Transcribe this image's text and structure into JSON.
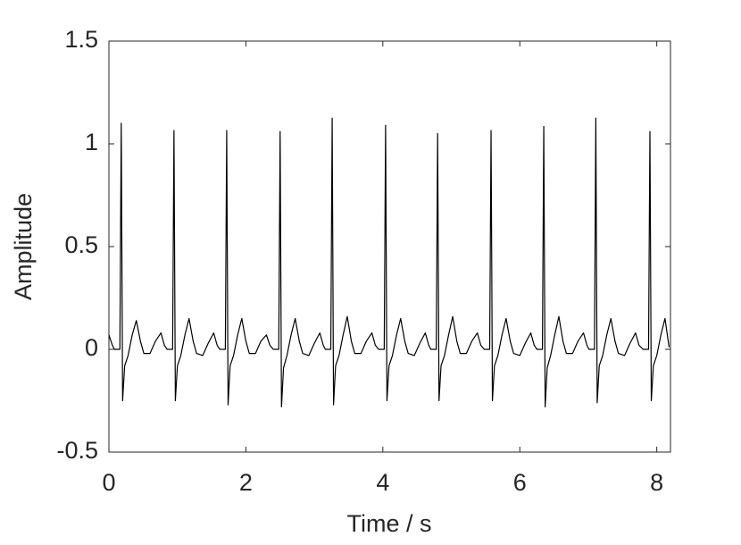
{
  "chart_data": {
    "type": "line",
    "xlabel": "Time / s",
    "ylabel": "Amplitude",
    "xlim": [
      0,
      8.2
    ],
    "ylim": [
      -0.5,
      1.5
    ],
    "xticks": [
      0,
      2,
      4,
      6,
      8
    ],
    "yticks": [
      -0.5,
      0,
      0.5,
      1,
      1.5
    ],
    "grid": false,
    "series": [
      {
        "color": "#000000",
        "x": [
          0,
          0.05,
          0.08,
          0.16,
          0.18,
          0.2,
          0.23,
          0.28,
          0.34,
          0.4,
          0.46,
          0.51,
          0.6,
          0.68,
          0.76,
          0.81,
          0.85,
          0.93,
          0.95,
          0.97,
          1.0,
          1.05,
          1.11,
          1.17,
          1.23,
          1.28,
          1.37,
          1.45,
          1.53,
          1.58,
          1.62,
          1.7,
          1.72,
          1.74,
          1.77,
          1.82,
          1.88,
          1.94,
          2.0,
          2.05,
          2.14,
          2.22,
          2.3,
          2.35,
          2.4,
          2.48,
          2.5,
          2.52,
          2.55,
          2.6,
          2.66,
          2.72,
          2.78,
          2.83,
          2.92,
          3.0,
          3.08,
          3.13,
          3.16,
          3.24,
          3.26,
          3.28,
          3.31,
          3.36,
          3.42,
          3.48,
          3.54,
          3.59,
          3.68,
          3.76,
          3.84,
          3.89,
          3.94,
          4.02,
          4.04,
          4.06,
          4.09,
          4.14,
          4.2,
          4.26,
          4.32,
          4.37,
          4.46,
          4.54,
          4.62,
          4.67,
          4.7,
          4.78,
          4.8,
          4.82,
          4.85,
          4.9,
          4.96,
          5.02,
          5.08,
          5.13,
          5.22,
          5.3,
          5.38,
          5.43,
          5.48,
          5.56,
          5.58,
          5.6,
          5.63,
          5.68,
          5.74,
          5.8,
          5.86,
          5.91,
          6.0,
          6.08,
          6.16,
          6.21,
          6.25,
          6.33,
          6.35,
          6.37,
          6.4,
          6.45,
          6.51,
          6.57,
          6.63,
          6.68,
          6.77,
          6.85,
          6.93,
          6.98,
          7.01,
          7.09,
          7.11,
          7.13,
          7.16,
          7.21,
          7.27,
          7.33,
          7.39,
          7.44,
          7.53,
          7.61,
          7.69,
          7.74,
          7.8,
          7.88,
          7.9,
          7.92,
          7.95,
          8.0,
          8.06,
          8.12,
          8.18
        ],
        "values": [
          0.07,
          0.02,
          0,
          0,
          1.1,
          -0.25,
          -0.08,
          -0.03,
          0.07,
          0.14,
          0.04,
          -0.02,
          -0.02,
          0.04,
          0.08,
          0.02,
          0,
          0,
          1.065,
          -0.25,
          -0.08,
          -0.03,
          0.07,
          0.15,
          0.04,
          -0.02,
          -0.03,
          0.03,
          0.08,
          0.02,
          0,
          0,
          1.065,
          -0.27,
          -0.08,
          -0.03,
          0.07,
          0.15,
          0.04,
          -0.02,
          -0.02,
          0.04,
          0.07,
          0.02,
          0,
          0,
          1.06,
          -0.28,
          -0.09,
          -0.03,
          0.07,
          0.15,
          0.04,
          -0.02,
          -0.03,
          0.03,
          0.08,
          0.02,
          0,
          0,
          1.125,
          -0.27,
          -0.08,
          -0.03,
          0.07,
          0.16,
          0.04,
          -0.02,
          -0.02,
          0.04,
          0.08,
          0.02,
          0,
          0,
          1.09,
          -0.25,
          -0.08,
          -0.03,
          0.07,
          0.15,
          0.04,
          -0.02,
          -0.03,
          0.03,
          0.08,
          0.02,
          0,
          0,
          1.05,
          -0.25,
          -0.08,
          -0.03,
          0.07,
          0.16,
          0.04,
          -0.02,
          -0.02,
          0.04,
          0.08,
          0.02,
          0,
          0,
          1.065,
          -0.25,
          -0.08,
          -0.03,
          0.07,
          0.15,
          0.04,
          -0.02,
          -0.03,
          0.03,
          0.08,
          0.02,
          0,
          0,
          1.085,
          -0.28,
          -0.09,
          -0.03,
          0.07,
          0.16,
          0.04,
          -0.02,
          -0.02,
          0.04,
          0.08,
          0.02,
          0,
          0,
          1.125,
          -0.26,
          -0.08,
          -0.03,
          0.07,
          0.15,
          0.04,
          -0.02,
          -0.03,
          0.03,
          0.08,
          0.02,
          0,
          0,
          1.06,
          -0.25,
          -0.08,
          -0.03,
          0.07,
          0.15,
          0.01
        ]
      }
    ]
  }
}
